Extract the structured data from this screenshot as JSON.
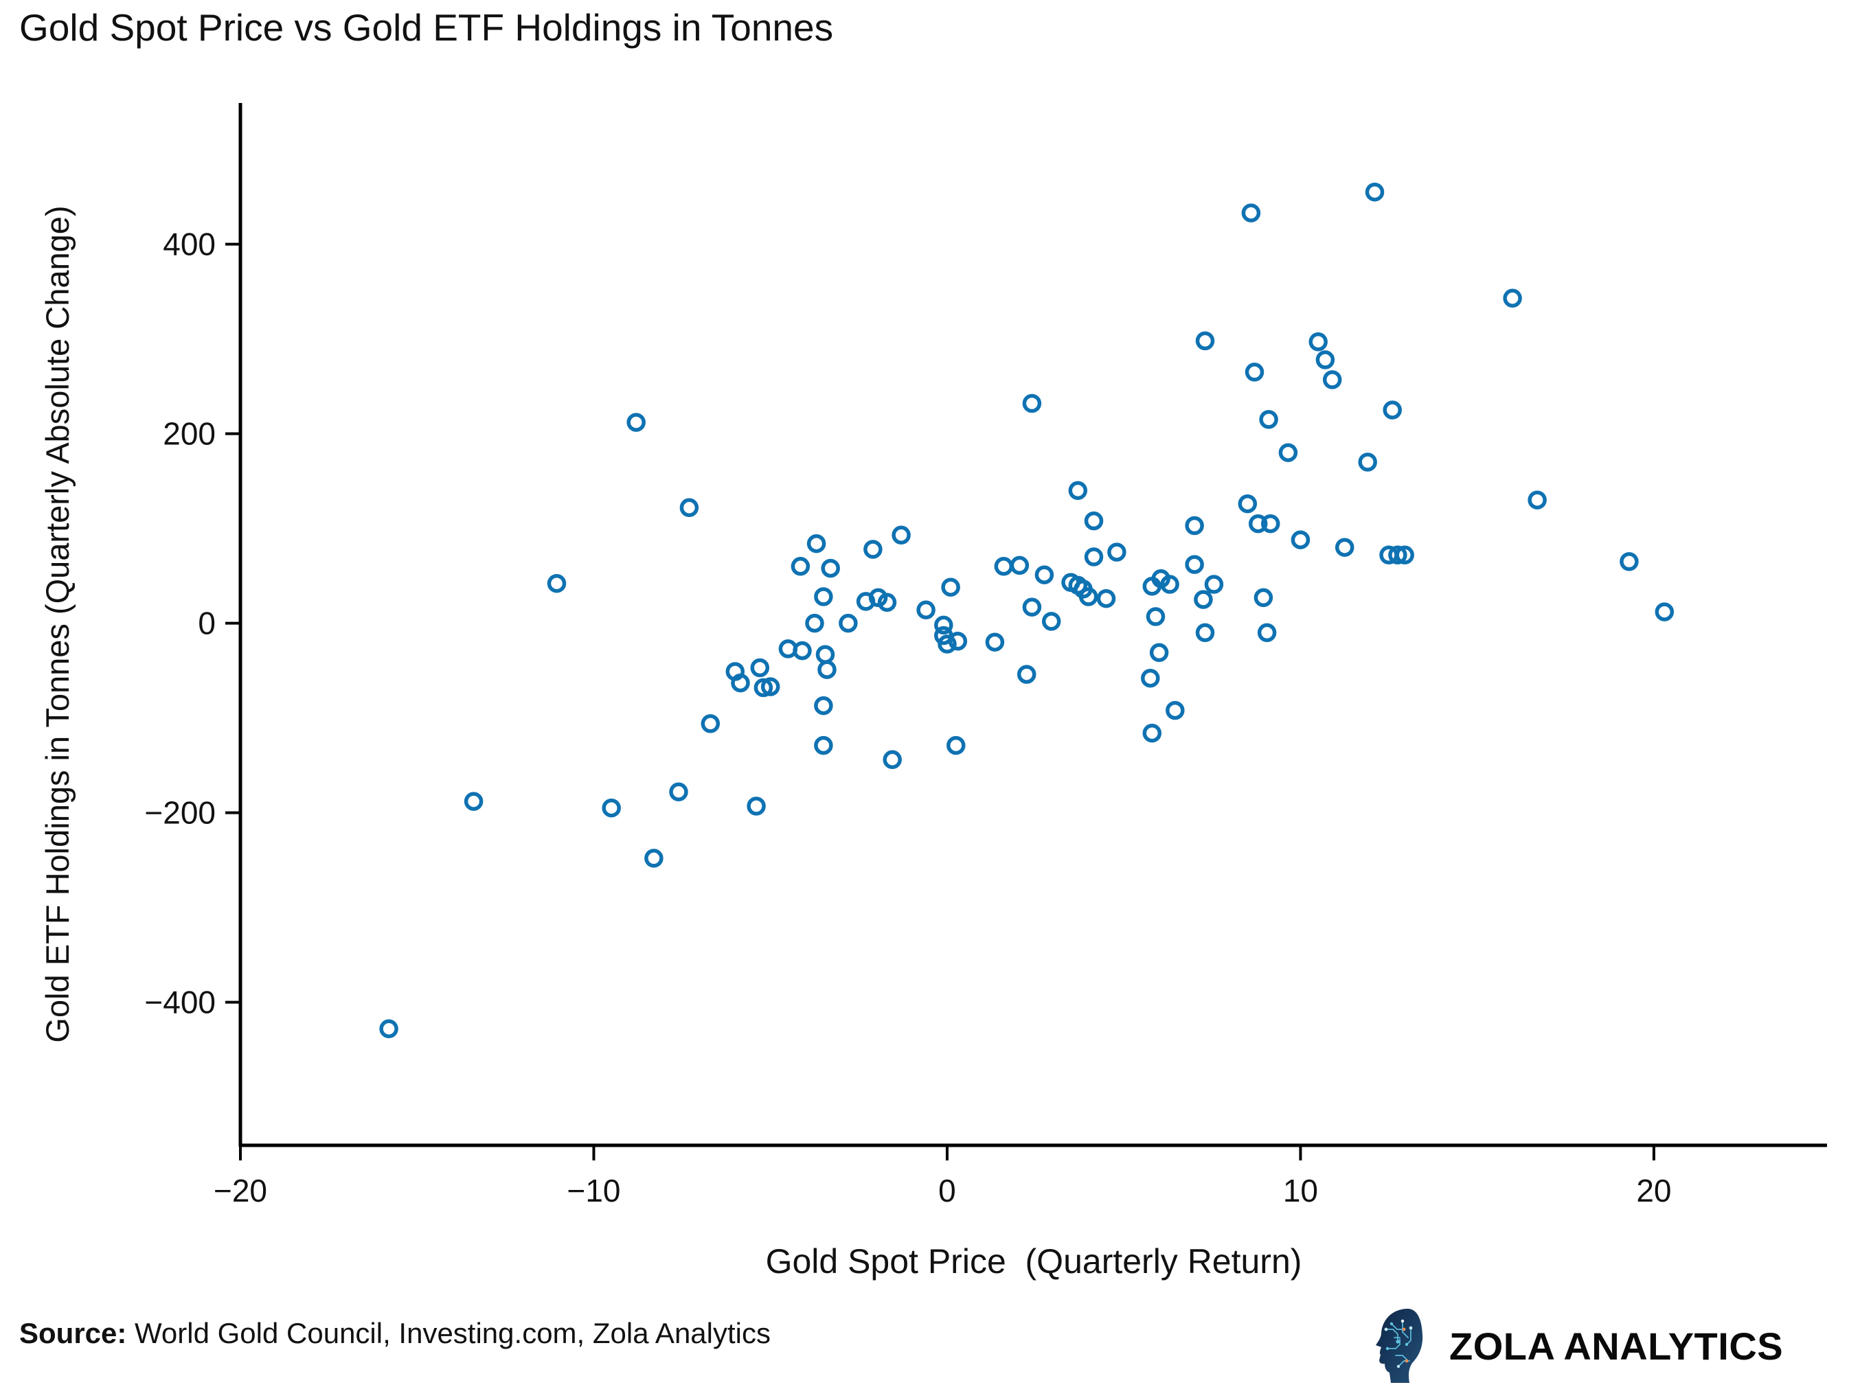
{
  "title": "Gold Spot Price vs Gold ETF Holdings in Tonnes",
  "source": {
    "label": "Source:",
    "text": " World Gold Council, Investing.com, Zola Analytics"
  },
  "brand": {
    "name": "ZOLA ANALYTICS",
    "icon": "circuit-head-logo",
    "icon_navy": "#14304f",
    "icon_cyan": "#5fc4e1",
    "icon_orange": "#ef8e57"
  },
  "chart_data": {
    "type": "scatter",
    "title": "Gold Spot Price vs Gold ETF Holdings in Tonnes",
    "xlabel": "Gold Spot Price  (Quarterly Return)",
    "ylabel": "Gold ETF Holdings in Tonnes (Quarterly Absolute Change)",
    "xlim": [
      -20,
      24.9
    ],
    "ylim": [
      -551,
      549
    ],
    "xticks": [
      -20,
      -10,
      0,
      10,
      20
    ],
    "yticks": [
      -400,
      -200,
      0,
      200,
      400
    ],
    "grid": false,
    "legend": null,
    "marker": "open-circle",
    "marker_color": "#0f72b2",
    "axis_color": "#000000",
    "text_color": "#111111",
    "points": [
      [
        -15.8,
        -428
      ],
      [
        -13.4,
        -188
      ],
      [
        -11.05,
        42
      ],
      [
        -9.5,
        -195
      ],
      [
        -8.8,
        212
      ],
      [
        -8.3,
        -248
      ],
      [
        -7.6,
        -178
      ],
      [
        -7.3,
        122
      ],
      [
        -6.7,
        -106
      ],
      [
        -6.0,
        -51
      ],
      [
        -5.85,
        -63
      ],
      [
        -5.4,
        -193
      ],
      [
        -5.3,
        -47
      ],
      [
        -5.2,
        -68
      ],
      [
        -5.0,
        -67
      ],
      [
        -4.5,
        -27
      ],
      [
        -4.15,
        60
      ],
      [
        -4.1,
        -29
      ],
      [
        -3.75,
        0
      ],
      [
        -3.7,
        84
      ],
      [
        -3.5,
        28
      ],
      [
        -3.5,
        -87
      ],
      [
        -3.5,
        -129
      ],
      [
        -3.45,
        -33
      ],
      [
        -3.4,
        -49
      ],
      [
        -3.3,
        58
      ],
      [
        -2.8,
        0
      ],
      [
        -2.3,
        23
      ],
      [
        -2.1,
        78
      ],
      [
        -1.95,
        27
      ],
      [
        -1.7,
        22
      ],
      [
        -1.55,
        -144
      ],
      [
        -1.3,
        93
      ],
      [
        -0.6,
        14
      ],
      [
        -0.1,
        -2
      ],
      [
        -0.1,
        -13
      ],
      [
        0.0,
        -22
      ],
      [
        0.1,
        38
      ],
      [
        0.25,
        -129
      ],
      [
        0.3,
        -19
      ],
      [
        1.35,
        -20
      ],
      [
        1.6,
        60
      ],
      [
        2.05,
        61
      ],
      [
        2.25,
        -54
      ],
      [
        2.4,
        17
      ],
      [
        2.4,
        232
      ],
      [
        2.75,
        51
      ],
      [
        2.95,
        2
      ],
      [
        3.5,
        43
      ],
      [
        3.7,
        40
      ],
      [
        3.7,
        140
      ],
      [
        3.85,
        36
      ],
      [
        4.0,
        28
      ],
      [
        4.15,
        70
      ],
      [
        4.15,
        108
      ],
      [
        4.5,
        26
      ],
      [
        4.8,
        75
      ],
      [
        5.75,
        -58
      ],
      [
        5.8,
        39
      ],
      [
        5.8,
        -116
      ],
      [
        5.9,
        7
      ],
      [
        6.0,
        -31
      ],
      [
        6.05,
        47
      ],
      [
        6.3,
        41
      ],
      [
        6.45,
        -92
      ],
      [
        7.0,
        62
      ],
      [
        7.0,
        103
      ],
      [
        7.25,
        25
      ],
      [
        7.3,
        -10
      ],
      [
        7.3,
        298
      ],
      [
        7.55,
        41
      ],
      [
        8.5,
        126
      ],
      [
        8.6,
        433
      ],
      [
        8.7,
        265
      ],
      [
        8.8,
        105
      ],
      [
        8.95,
        27
      ],
      [
        9.05,
        -10
      ],
      [
        9.1,
        215
      ],
      [
        9.15,
        105
      ],
      [
        9.65,
        180
      ],
      [
        10.0,
        88
      ],
      [
        10.5,
        297
      ],
      [
        10.7,
        278
      ],
      [
        10.9,
        257
      ],
      [
        11.25,
        80
      ],
      [
        11.9,
        170
      ],
      [
        12.1,
        455
      ],
      [
        12.5,
        72
      ],
      [
        12.6,
        225
      ],
      [
        12.75,
        72
      ],
      [
        12.95,
        72
      ],
      [
        16.0,
        343
      ],
      [
        16.7,
        130
      ],
      [
        19.3,
        65
      ],
      [
        20.3,
        12
      ]
    ]
  }
}
